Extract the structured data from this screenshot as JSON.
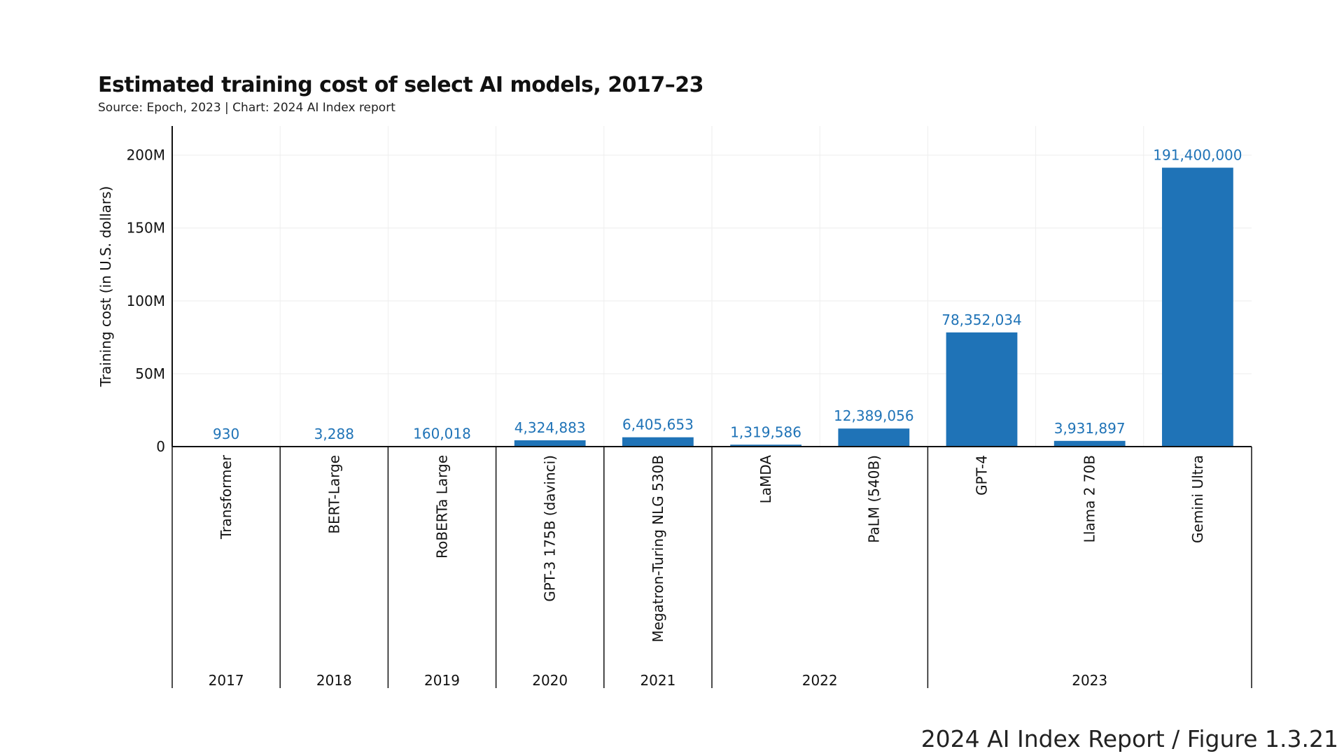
{
  "title": "Estimated training cost of select AI models, 2017–23",
  "subtitle": "Source: Epoch, 2023 | Chart: 2024 AI Index report",
  "footer": "2024 AI Index Report / Figure 1.3.21",
  "colors": {
    "bar": "#1f73b7",
    "label": "#1f73b7",
    "axis": "#111111",
    "grid": "#eeeeee"
  },
  "chart_data": {
    "type": "bar",
    "ylabel": "Training cost (in U.S. dollars)",
    "ylim": [
      0,
      220000000
    ],
    "yticks": [
      {
        "value": 0,
        "label": "0"
      },
      {
        "value": 50000000,
        "label": "50M"
      },
      {
        "value": 100000000,
        "label": "100M"
      },
      {
        "value": 150000000,
        "label": "150M"
      },
      {
        "value": 200000000,
        "label": "200M"
      }
    ],
    "grid": true,
    "categories": [
      "Transformer",
      "BERT-Large",
      "RoBERTa Large",
      "GPT-3 175B (davinci)",
      "Megatron-Turing NLG 530B",
      "LaMDA",
      "PaLM (540B)",
      "GPT-4",
      "Llama 2 70B",
      "Gemini Ultra"
    ],
    "values": [
      930,
      3288,
      160018,
      4324883,
      6405653,
      1319586,
      12389056,
      78352034,
      3931897,
      191400000
    ],
    "value_labels": [
      "930",
      "3,288",
      "160,018",
      "4,324,883",
      "6,405,653",
      "1,319,586",
      "12,389,056",
      "78,352,034",
      "3,931,897",
      "191,400,000"
    ],
    "groups": [
      {
        "label": "2017",
        "count": 1
      },
      {
        "label": "2018",
        "count": 1
      },
      {
        "label": "2019",
        "count": 1
      },
      {
        "label": "2020",
        "count": 1
      },
      {
        "label": "2021",
        "count": 1
      },
      {
        "label": "2022",
        "count": 2
      },
      {
        "label": "2023",
        "count": 3
      }
    ]
  }
}
